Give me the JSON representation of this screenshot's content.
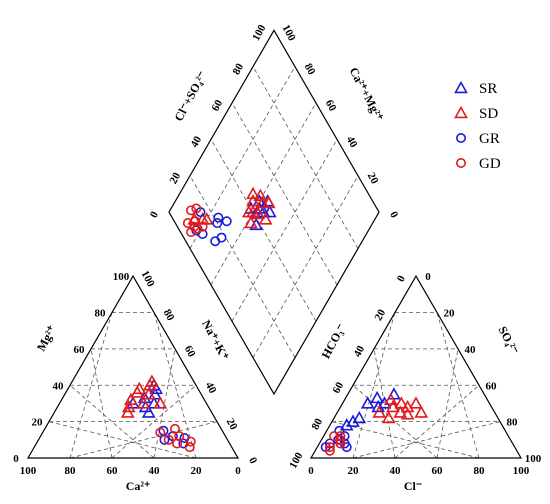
{
  "chart_data": {
    "type": "scatter",
    "subtype": "piper-diagram",
    "grid": true,
    "legend_position": "top-right",
    "tick_labels": [
      "0",
      "20",
      "40",
      "60",
      "80",
      "100"
    ],
    "axis_labels": {
      "cation_bottom": "Ca²⁺",
      "cation_left": "Mg²⁺",
      "cation_right": "Na⁺+K⁺",
      "anion_bottom": "Cl⁻",
      "anion_left": "HCO₃⁻",
      "anion_right": "SO₄²⁻",
      "diamond_upper_left": "Cl⁻+SO₄²⁻",
      "diamond_upper_right": "Ca²⁺+Mg²⁺"
    },
    "series": [
      {
        "name": "SR",
        "marker": "triangle",
        "color": "#1a1adc",
        "cations": [
          [
            30,
            25,
            45
          ],
          [
            35,
            22,
            43
          ],
          [
            28,
            30,
            42
          ],
          [
            38,
            20,
            42
          ],
          [
            25,
            30,
            45
          ],
          [
            40,
            20,
            40
          ],
          [
            33,
            28,
            39
          ],
          [
            30,
            35,
            35
          ]
        ],
        "anions": [
          [
            12,
            30,
            58
          ],
          [
            15,
            33,
            52
          ],
          [
            18,
            28,
            54
          ],
          [
            20,
            30,
            50
          ],
          [
            22,
            35,
            43
          ],
          [
            10,
            20,
            70
          ],
          [
            8,
            18,
            74
          ],
          [
            12,
            22,
            66
          ]
        ],
        "diamond": [
          [
            42,
            58
          ],
          [
            45,
            55
          ],
          [
            48,
            52
          ],
          [
            40,
            62
          ],
          [
            44,
            58
          ],
          [
            38,
            55
          ],
          [
            46,
            60
          ],
          [
            50,
            56
          ]
        ]
      },
      {
        "name": "SD",
        "marker": "triangle",
        "color": "#e31a1c",
        "cations": [
          [
            30,
            30,
            40
          ],
          [
            35,
            25,
            40
          ],
          [
            28,
            38,
            34
          ],
          [
            40,
            22,
            38
          ],
          [
            32,
            35,
            33
          ],
          [
            38,
            28,
            34
          ],
          [
            25,
            40,
            35
          ],
          [
            42,
            20,
            38
          ],
          [
            36,
            30,
            34
          ],
          [
            30,
            22,
            48
          ]
        ],
        "anions": [
          [
            20,
            25,
            55
          ],
          [
            25,
            28,
            47
          ],
          [
            30,
            25,
            45
          ],
          [
            28,
            30,
            42
          ],
          [
            32,
            28,
            40
          ],
          [
            35,
            30,
            35
          ],
          [
            22,
            32,
            46
          ],
          [
            26,
            22,
            52
          ],
          [
            40,
            25,
            35
          ],
          [
            34,
            24,
            42
          ]
        ],
        "diamond": [
          [
            40,
            60
          ],
          [
            43,
            63
          ],
          [
            47,
            58
          ],
          [
            50,
            55
          ],
          [
            45,
            65
          ],
          [
            42,
            57
          ],
          [
            38,
            62
          ],
          [
            48,
            61
          ],
          [
            44,
            52
          ],
          [
            36,
            58
          ],
          [
            14,
            82
          ],
          [
            10,
            86
          ],
          [
            16,
            80
          ]
        ]
      },
      {
        "name": "GR",
        "marker": "circle",
        "color": "#1a1adc",
        "cations": [
          [
            10,
            30,
            60
          ],
          [
            12,
            25,
            63
          ],
          [
            8,
            22,
            70
          ],
          [
            15,
            28,
            57
          ],
          [
            11,
            20,
            69
          ]
        ],
        "anions": [
          [
            5,
            8,
            87
          ],
          [
            8,
            10,
            82
          ],
          [
            10,
            12,
            78
          ],
          [
            6,
            15,
            79
          ],
          [
            4,
            6,
            90
          ],
          [
            12,
            8,
            80
          ],
          [
            14,
            6,
            80
          ]
        ],
        "diamond": [
          [
            10,
            78
          ],
          [
            14,
            70
          ],
          [
            20,
            74
          ],
          [
            8,
            82
          ],
          [
            18,
            68
          ],
          [
            22,
            75
          ],
          [
            15,
            85
          ],
          [
            25,
            70
          ]
        ]
      },
      {
        "name": "GD",
        "marker": "circle",
        "color": "#e31a1c",
        "cations": [
          [
            10,
            28,
            62
          ],
          [
            12,
            22,
            66
          ],
          [
            8,
            25,
            67
          ],
          [
            14,
            30,
            56
          ],
          [
            6,
            20,
            74
          ],
          [
            16,
            22,
            62
          ],
          [
            9,
            18,
            73
          ]
        ],
        "anions": [
          [
            6,
            6,
            88
          ],
          [
            8,
            12,
            80
          ],
          [
            10,
            8,
            82
          ],
          [
            5,
            12,
            83
          ],
          [
            7,
            4,
            89
          ],
          [
            9,
            10,
            81
          ]
        ],
        "diamond": [
          [
            10,
            85
          ],
          [
            6,
            88
          ],
          [
            12,
            80
          ],
          [
            8,
            84
          ],
          [
            14,
            88
          ],
          [
            9,
            82
          ],
          [
            11,
            90
          ],
          [
            5,
            84
          ]
        ]
      }
    ]
  }
}
